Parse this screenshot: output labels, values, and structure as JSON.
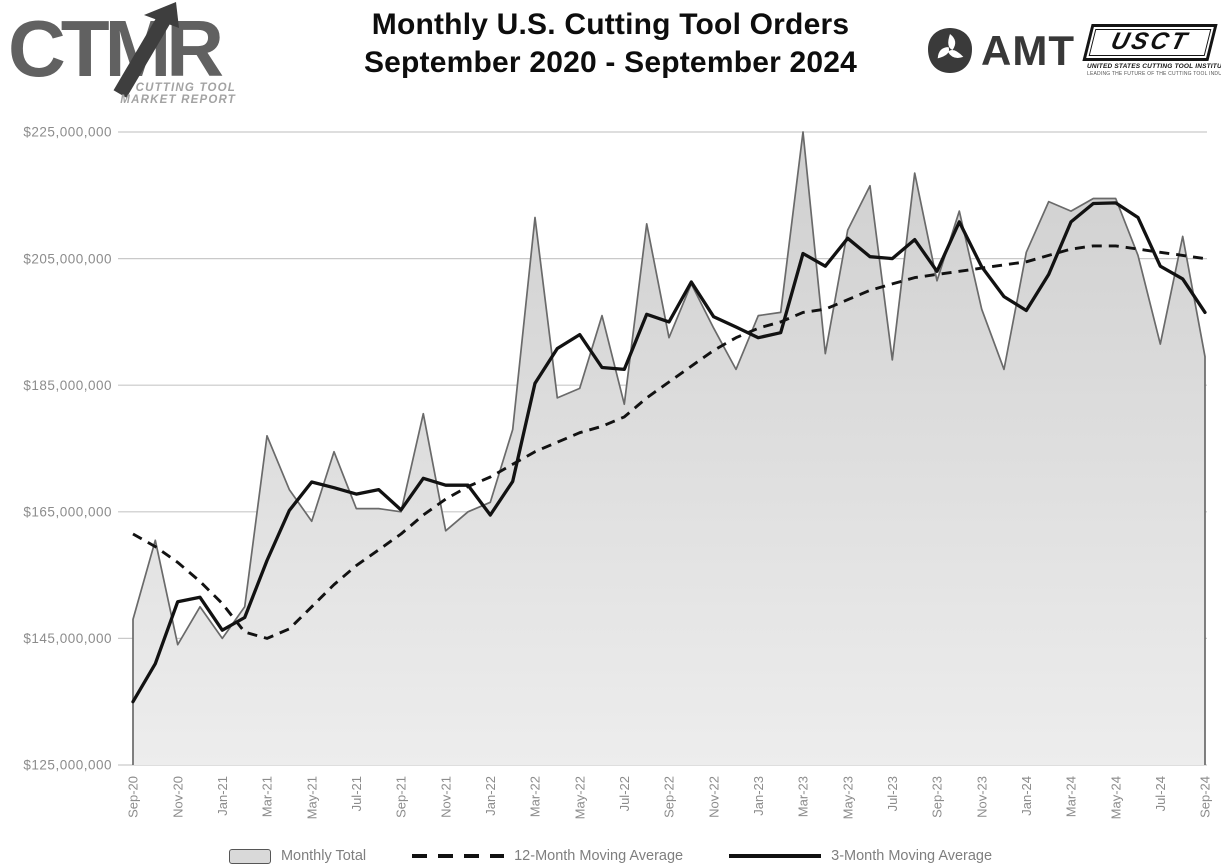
{
  "header": {
    "logo": {
      "text": "CTMR",
      "subtitle_line1": "CUTTING TOOL",
      "subtitle_line2": "MARKET REPORT"
    },
    "title_line1": "Monthly U.S. Cutting Tool Orders",
    "title_line2": "September 2020 - September 2024",
    "amt_label": "AMT",
    "usct": {
      "label": "USCT",
      "line1": "UNITED STATES CUTTING TOOL INSTITUTE",
      "line2": "LEADING THE FUTURE OF THE CUTTING TOOL INDUSTRY"
    }
  },
  "legend": {
    "monthly": "Monthly Total",
    "ma12": "12-Month Moving Average",
    "ma3": "3-Month Moving Average"
  },
  "chart_data": {
    "type": "area",
    "title": "Monthly U.S. Cutting Tool Orders September 2020 - September 2024",
    "unit": "USD millions",
    "grid": "horizontal",
    "legend_position": "bottom",
    "ylim_musd": [
      125,
      225
    ],
    "y_ticks": [
      {
        "label": "$125,000,000",
        "value_musd": 125
      },
      {
        "label": "$145,000,000",
        "value_musd": 145
      },
      {
        "label": "$165,000,000",
        "value_musd": 165
      },
      {
        "label": "$185,000,000",
        "value_musd": 185
      },
      {
        "label": "$205,000,000",
        "value_musd": 205
      },
      {
        "label": "$225,000,000",
        "value_musd": 225
      }
    ],
    "x": [
      "Sep-20",
      "Oct-20",
      "Nov-20",
      "Dec-20",
      "Jan-21",
      "Feb-21",
      "Mar-21",
      "Apr-21",
      "May-21",
      "Jun-21",
      "Jul-21",
      "Aug-21",
      "Sep-21",
      "Oct-21",
      "Nov-21",
      "Dec-21",
      "Jan-22",
      "Feb-22",
      "Mar-22",
      "Apr-22",
      "May-22",
      "Jun-22",
      "Jul-22",
      "Aug-22",
      "Sep-22",
      "Oct-22",
      "Nov-22",
      "Dec-22",
      "Jan-23",
      "Feb-23",
      "Mar-23",
      "Apr-23",
      "May-23",
      "Jun-23",
      "Jul-23",
      "Aug-23",
      "Sep-23",
      "Oct-23",
      "Nov-23",
      "Dec-23",
      "Jan-24",
      "Feb-24",
      "Mar-24",
      "Apr-24",
      "May-24",
      "Jun-24",
      "Jul-24",
      "Aug-24",
      "Sep-24"
    ],
    "x_tick_every": 2,
    "series": [
      {
        "name": "Monthly Total",
        "type": "area",
        "values_musd": [
          148,
          160.5,
          144,
          150,
          145,
          150,
          177,
          168.5,
          163.5,
          174.5,
          165.5,
          165.5,
          165,
          180.5,
          162,
          165,
          166.5,
          178,
          211.5,
          183,
          184.5,
          196,
          182,
          210.5,
          192.5,
          201,
          194,
          187.5,
          196,
          196.5,
          225,
          190,
          209.5,
          216.5,
          189,
          218.5,
          201.5,
          212.5,
          197,
          187.5,
          206,
          214,
          212.5,
          214.5,
          214.5,
          205.5,
          191.5,
          208.5,
          189.5
        ]
      },
      {
        "name": "12-Month Moving Average",
        "type": "line",
        "style": "dashed",
        "values_musd": [
          161.5,
          159.5,
          157,
          154,
          150.5,
          146,
          145,
          146.5,
          150,
          153.5,
          156.5,
          159,
          161.5,
          164.5,
          167,
          169,
          170.5,
          172.5,
          174.5,
          176,
          177.5,
          178.5,
          180,
          183,
          185.5,
          188,
          190.5,
          192.5,
          194,
          195,
          196.5,
          197,
          198.5,
          200,
          201,
          202,
          202.5,
          203,
          203.5,
          204,
          204.5,
          205.5,
          206.5,
          207,
          207,
          206.5,
          206,
          205.5,
          205
        ]
      },
      {
        "name": "3-Month Moving Average",
        "type": "line",
        "style": "solid",
        "values_musd": [
          135,
          141,
          150.8,
          151.5,
          146.3,
          148.3,
          157.3,
          165.2,
          169.7,
          168.8,
          167.8,
          168.5,
          165.3,
          170.3,
          169.2,
          169.2,
          164.5,
          169.8,
          185.3,
          190.8,
          193,
          187.8,
          187.5,
          196.2,
          195,
          201.3,
          195.8,
          194.2,
          192.5,
          193.3,
          205.8,
          203.8,
          208.2,
          205.3,
          205,
          208,
          203,
          210.8,
          203.7,
          199,
          196.8,
          202.5,
          210.8,
          213.7,
          213.8,
          211.5,
          203.8,
          201.8,
          196.5
        ]
      }
    ],
    "colors": {
      "area_fill_top": "#cfcfcf",
      "area_fill_bottom": "#ededed",
      "area_edge": "#6a6a6a",
      "line": "#121212",
      "grid": "#c9c9c9",
      "axis_labels": "#8c8c8c"
    }
  }
}
